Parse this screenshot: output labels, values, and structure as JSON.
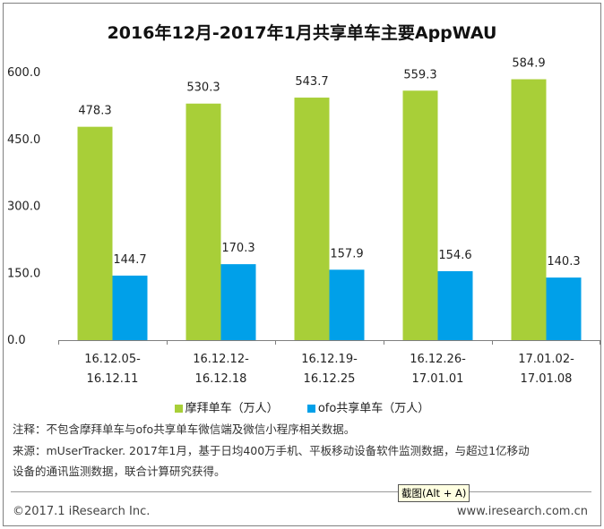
{
  "chart_data": {
    "type": "bar",
    "title": "2016年12月-2017年1月共享单车主要AppWAU",
    "categories": [
      [
        "16.12.05-",
        "16.12.11"
      ],
      [
        "16.12.12-",
        "16.12.18"
      ],
      [
        "16.12.19-",
        "16.12.25"
      ],
      [
        "16.12.26-",
        "17.01.01"
      ],
      [
        "17.01.02-",
        "17.01.08"
      ]
    ],
    "series": [
      {
        "name": "摩拜单车（万人）",
        "color": "#a8cf38",
        "values": [
          478.3,
          530.3,
          543.7,
          559.3,
          584.9
        ]
      },
      {
        "name": "ofo共享单车（万人）",
        "color": "#00a0e9",
        "values": [
          144.7,
          170.3,
          157.9,
          154.6,
          140.3
        ]
      }
    ],
    "ylim": [
      0,
      600
    ],
    "yticks": [
      "0.0",
      "150.0",
      "300.0",
      "450.0",
      "600.0"
    ],
    "xlabel": "",
    "ylabel": "",
    "grid": false,
    "legend_position": "bottom"
  },
  "notes": {
    "note1": "注释：不包含摩拜单车与ofo共享单车微信端及微信小程序相关数据。",
    "note2": "来源：mUserTracker. 2017年1月，基于日均400万手机、平板移动设备软件监测数据，与超过1亿移动",
    "note3": "设备的通讯监测数据，联合计算研究获得。"
  },
  "footer": {
    "left": "©2017.1 iResearch Inc.",
    "right": "www.iresearch.com.cn"
  },
  "tooltip": "截图(Alt + A)"
}
